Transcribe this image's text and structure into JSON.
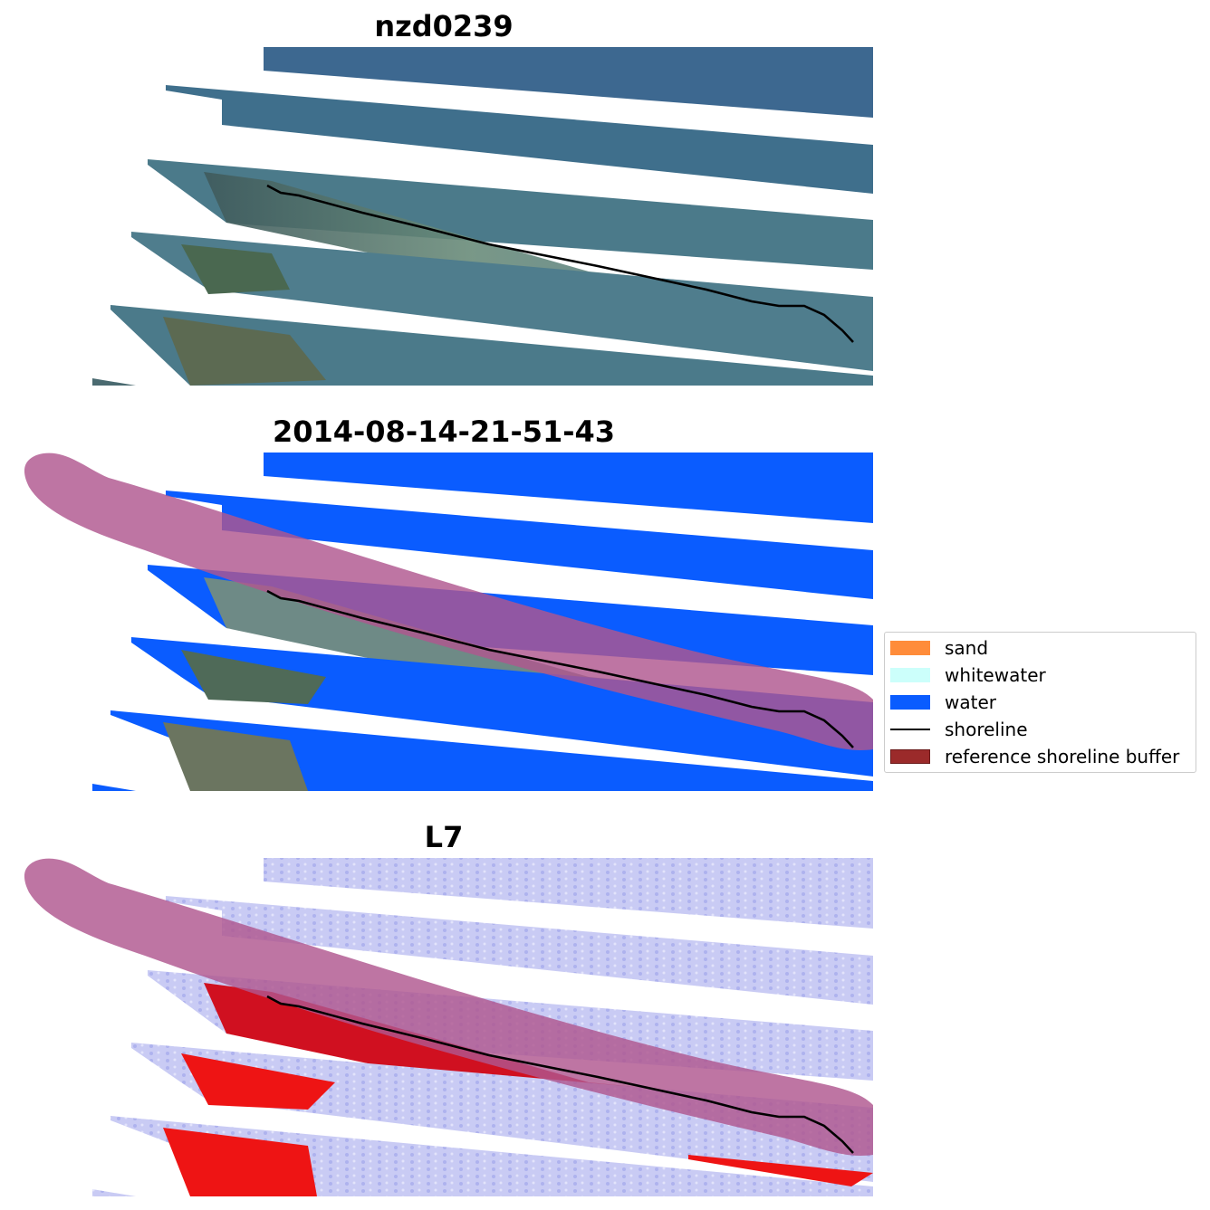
{
  "panels": [
    {
      "title": "nzd0239"
    },
    {
      "title": "2014-08-14-21-51-43"
    },
    {
      "title": "L7"
    }
  ],
  "legend": {
    "items": [
      {
        "label": "sand",
        "color": "#ff8c3a",
        "kind": "patch"
      },
      {
        "label": "whitewater",
        "color": "#ccfffb",
        "kind": "patch"
      },
      {
        "label": "water",
        "color": "#0a5cff",
        "kind": "patch"
      },
      {
        "label": "shoreline",
        "color": "#000000",
        "kind": "line"
      },
      {
        "label": "reference shoreline buffer",
        "color": "#9b2a2a",
        "kind": "patch"
      }
    ]
  },
  "colors": {
    "rgb_water": "#3d6d8e",
    "rgb_land": "#6a8a78",
    "class_water": "#0a5cff",
    "buffer": "#b0578f",
    "mndwi_water": "#c6c8f4",
    "mndwi_land": "#f01010"
  }
}
